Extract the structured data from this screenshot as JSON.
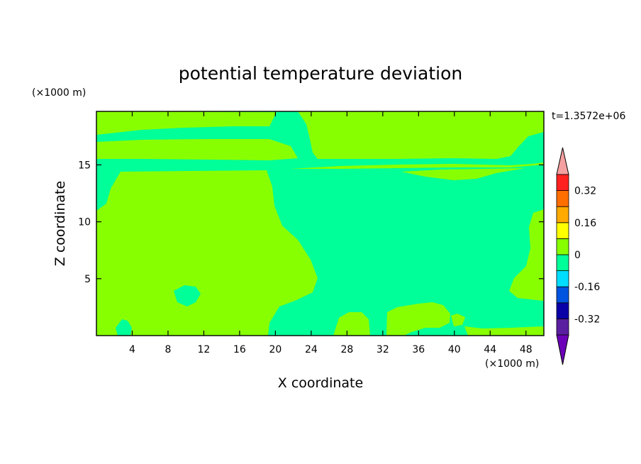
{
  "chart_data": {
    "type": "heatmap",
    "title": "potential temperature deviation",
    "xlabel": "X coordinate",
    "ylabel": "Z coordinate",
    "x_unit": "(×1000 m)",
    "y_unit": "(×1000 m)",
    "time_label": "t=1.3572e+06",
    "x_range": [
      0,
      50
    ],
    "y_range": [
      0,
      19.7
    ],
    "x_ticks": [
      4,
      8,
      12,
      16,
      20,
      24,
      28,
      32,
      36,
      40,
      44,
      48
    ],
    "y_ticks": [
      5,
      10,
      15
    ],
    "colorbar": {
      "levels": [
        -0.4,
        -0.32,
        -0.24,
        -0.16,
        -0.08,
        0,
        0.08,
        0.16,
        0.24,
        0.32,
        0.4
      ],
      "colors": [
        "#5a1fa0",
        "#0a00a8",
        "#0054e0",
        "#00ddff",
        "#00ff99",
        "#88ff00",
        "#ffff00",
        "#ffaa00",
        "#ff6e00",
        "#ff2020"
      ],
      "under_color": "#6c00b8",
      "over_color": "#f5a0a0",
      "labels": [
        "0.32",
        "0.16",
        "0",
        "-0.16",
        "-0.32"
      ],
      "label_values": [
        0.32,
        0.16,
        0,
        -0.16,
        -0.32
      ]
    },
    "regions_description": "Field values between 0 and 0.08 (green) and between -0.08 and 0 (aquamarine)",
    "background_value_color": "#00ff99",
    "positive_color": "#88ff00"
  }
}
